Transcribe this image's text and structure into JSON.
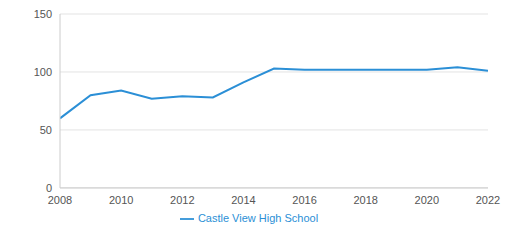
{
  "chart_data": {
    "type": "line",
    "x": [
      2008,
      2009,
      2010,
      2011,
      2012,
      2013,
      2014,
      2015,
      2016,
      2017,
      2018,
      2019,
      2020,
      2021,
      2022
    ],
    "series": [
      {
        "name": "Castle View High School",
        "color": "#2b8fd6",
        "values": [
          60,
          80,
          84,
          77,
          79,
          78,
          91,
          103,
          102,
          102,
          102,
          102,
          102,
          104,
          101
        ]
      }
    ],
    "xlim": [
      2008,
      2022
    ],
    "xticks": [
      2008,
      2010,
      2012,
      2014,
      2016,
      2018,
      2020,
      2022
    ],
    "ylim": [
      0,
      150
    ],
    "yticks": [
      0,
      50,
      100,
      150
    ],
    "grid": true,
    "legend": "bottom"
  }
}
